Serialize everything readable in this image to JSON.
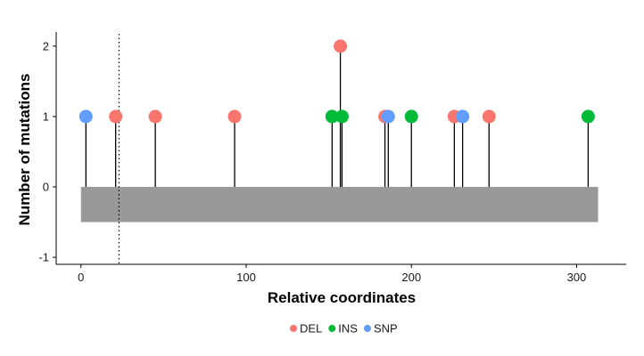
{
  "chart_data": {
    "type": "scatter",
    "subtype": "lollipop",
    "xlabel": "Relative coordinates",
    "ylabel": "Number of mutations",
    "xlim": [
      -15,
      330
    ],
    "ylim": [
      -1.1,
      2.2
    ],
    "x_ticks": [
      0,
      100,
      200,
      300
    ],
    "y_ticks": [
      -1,
      0,
      1,
      2
    ],
    "grid": false,
    "legend_position": "bottom",
    "region_bar": {
      "x_start": 0,
      "x_end": 313,
      "y_start": -0.5,
      "y_end": 0
    },
    "vertical_reference_line": {
      "x": 23,
      "style": "dotted"
    },
    "series": [
      {
        "name": "DEL",
        "color": "#F8766D",
        "points": [
          {
            "x": 21,
            "y": 1
          },
          {
            "x": 45,
            "y": 1
          },
          {
            "x": 93,
            "y": 1
          },
          {
            "x": 157,
            "y": 2
          },
          {
            "x": 184,
            "y": 1
          },
          {
            "x": 226,
            "y": 1
          },
          {
            "x": 247,
            "y": 1
          }
        ]
      },
      {
        "name": "INS",
        "color": "#00BA38",
        "points": [
          {
            "x": 152,
            "y": 1
          },
          {
            "x": 158,
            "y": 1
          },
          {
            "x": 200,
            "y": 1
          },
          {
            "x": 307,
            "y": 1
          }
        ]
      },
      {
        "name": "SNP",
        "color": "#619CFF",
        "points": [
          {
            "x": 3,
            "y": 1
          },
          {
            "x": 186,
            "y": 1
          },
          {
            "x": 231,
            "y": 1
          }
        ]
      }
    ]
  }
}
